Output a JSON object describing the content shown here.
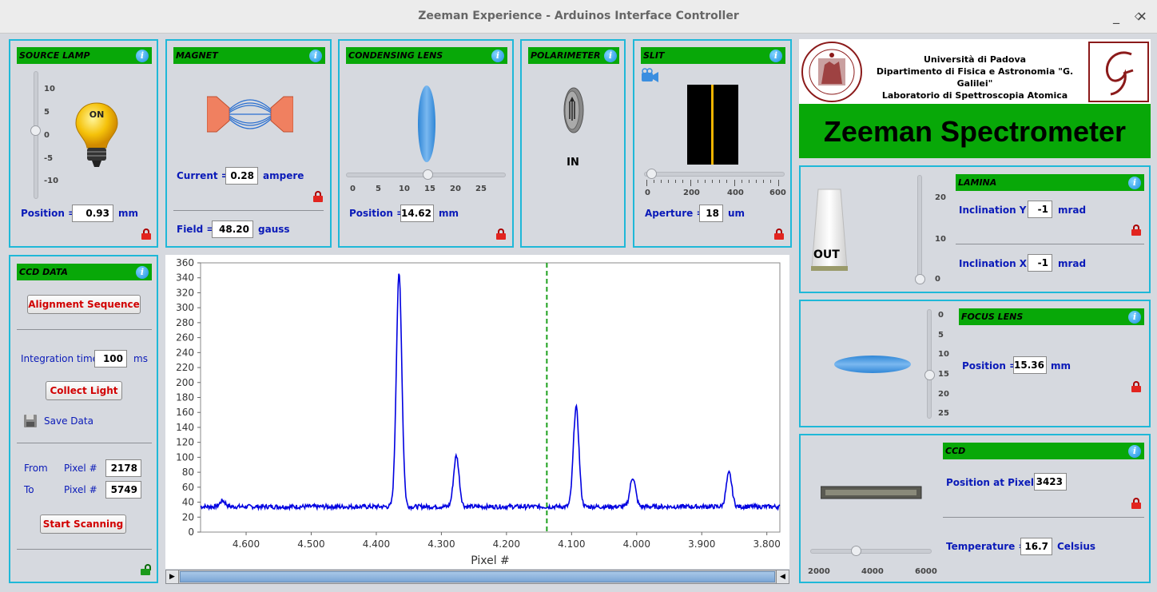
{
  "window": {
    "title": "Zeeman Experience - Arduinos Interface Controller",
    "minimize": "_",
    "maximize": "◇",
    "close": "✕"
  },
  "source_lamp": {
    "header": "SOURCE LAMP",
    "scale": [
      "10",
      "5",
      "0",
      "-5",
      "-10"
    ],
    "lamp_state": "ON",
    "position_label": "Position =",
    "position_value": "0.93",
    "unit": "mm"
  },
  "magnet": {
    "header": "MAGNET",
    "current_label": "Current =",
    "current_value": "0.28",
    "current_unit": "ampere",
    "field_label": "Field =",
    "field_value": "48.20",
    "field_unit": "gauss"
  },
  "condensing_lens": {
    "header": "CONDENSING LENS",
    "scale": [
      "0",
      "5",
      "10",
      "15",
      "20",
      "25"
    ],
    "position_label": "Position =",
    "position_value": "14.62",
    "unit": "mm"
  },
  "polarimeter": {
    "header": "POLARIMETER",
    "state": "IN"
  },
  "slit": {
    "header": "SLIT",
    "scale": [
      "0",
      "200",
      "400",
      "600"
    ],
    "aperture_label": "Aperture =",
    "aperture_value": "18",
    "unit": "um"
  },
  "university": {
    "line1": "Università di Padova",
    "line2": "Dipartimento di Fisica e Astronomia \"G. Galilei\"",
    "line3": "Laboratorio di Spettroscopia Atomica",
    "banner": "Zeeman Spectrometer"
  },
  "lamina": {
    "header": "LAMINA",
    "state": "OUT",
    "scale": [
      "20",
      "10",
      "0"
    ],
    "incl_y_label": "Inclination Y =",
    "incl_y_value": "-1",
    "incl_x_label": "Inclination X =",
    "incl_x_value": "-1",
    "unit": "mrad"
  },
  "focus_lens": {
    "header": "FOCUS LENS",
    "scale": [
      "0",
      "5",
      "10",
      "15",
      "20",
      "25"
    ],
    "position_label": "Position =",
    "position_value": "15.36",
    "unit": "mm"
  },
  "ccd": {
    "header": "CCD",
    "position_label": "Position at Pixel #",
    "position_value": "3423",
    "temp_label": "Temperature =",
    "temp_value": "16.7",
    "temp_unit": "Celsius",
    "scale": [
      "2000",
      "4000",
      "6000"
    ]
  },
  "ccd_data": {
    "header": "CCD DATA",
    "alignment_button": "Alignment Sequence",
    "integration_label": "Integration time",
    "integration_value": "100",
    "integration_unit": "ms",
    "collect_button": "Collect Light",
    "save_label": "Save Data",
    "from_label": "From",
    "to_label": "To",
    "pixel_label": "Pixel #",
    "from_value": "2178",
    "to_value": "5749",
    "scan_button": "Start Scanning"
  },
  "colors": {
    "accent_header": "#08a808",
    "panel_border": "#1fb8d8",
    "label_blue": "#0a1ab8",
    "button_text": "#d10000",
    "series": "#0000e0",
    "marker": "#1ea11e"
  },
  "chart_data": {
    "type": "line",
    "xlabel": "Pixel #",
    "ylabel": "",
    "xlim": [
      4.67,
      3.78
    ],
    "ylim": [
      0,
      360
    ],
    "x_reversed": true,
    "xticks": [
      "4.600",
      "4.500",
      "4.400",
      "4.300",
      "4.200",
      "4.100",
      "4.000",
      "3.900",
      "3.800"
    ],
    "yticks": [
      "0",
      "20",
      "40",
      "60",
      "80",
      "100",
      "120",
      "140",
      "160",
      "180",
      "200",
      "220",
      "240",
      "260",
      "280",
      "300",
      "320",
      "340",
      "360"
    ],
    "baseline": 34,
    "peaks": [
      {
        "x": 4.636,
        "y": 42
      },
      {
        "x": 4.365,
        "y": 345
      },
      {
        "x": 4.277,
        "y": 102
      },
      {
        "x": 4.093,
        "y": 167
      },
      {
        "x": 4.006,
        "y": 73
      },
      {
        "x": 3.858,
        "y": 79
      }
    ],
    "marker_x": 4.138,
    "grid": false
  }
}
